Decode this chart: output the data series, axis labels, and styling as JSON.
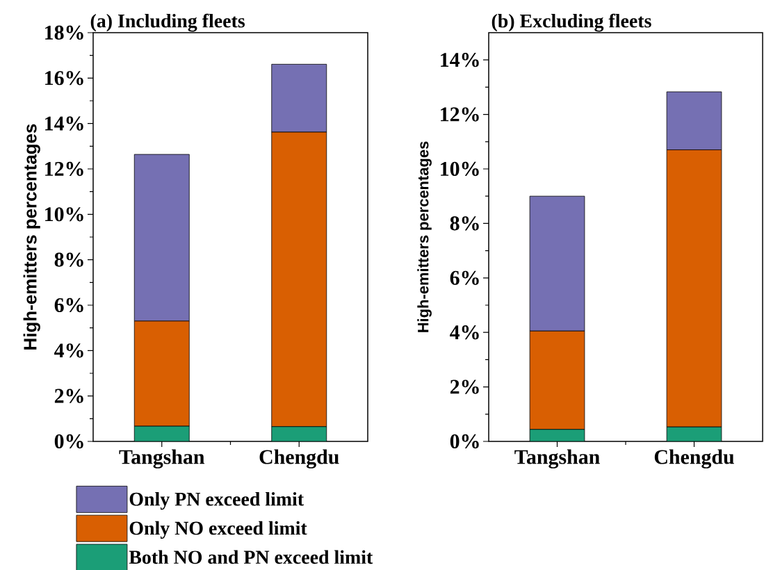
{
  "chart_data": [
    {
      "type": "bar",
      "title": "(a) Including fleets",
      "ylabel": "High-emitters percentages",
      "categories": [
        "Tangshan",
        "Chengdu"
      ],
      "stacked": true,
      "legend": "bottom",
      "series": [
        {
          "name": "Both NO and PN exceed limit",
          "color": "#1b9e77",
          "values": [
            0.67,
            0.65
          ]
        },
        {
          "name": "Only NO exceed limit",
          "color": "#d95f02",
          "values": [
            4.63,
            12.97
          ]
        },
        {
          "name": "Only PN exceed limit",
          "color": "#7570b3",
          "values": [
            7.34,
            2.99
          ]
        }
      ],
      "ylim": [
        0,
        18
      ],
      "yticks": [
        {
          "value": 0,
          "label": "0%"
        },
        {
          "value": 2,
          "label": "2%"
        },
        {
          "value": 4,
          "label": "4%"
        },
        {
          "value": 6,
          "label": "6%"
        },
        {
          "value": 8,
          "label": "8%"
        },
        {
          "value": 10,
          "label": "10%"
        },
        {
          "value": 12,
          "label": "12%"
        },
        {
          "value": 14,
          "label": "14%"
        },
        {
          "value": 16,
          "label": "16%"
        },
        {
          "value": 18,
          "label": "18%"
        }
      ]
    },
    {
      "type": "bar",
      "title": "(b) Excluding fleets",
      "ylabel": "High-emitters percentages",
      "categories": [
        "Tangshan",
        "Chengdu"
      ],
      "stacked": true,
      "series": [
        {
          "color": "#1b9e77",
          "values": [
            0.44,
            0.53
          ]
        },
        {
          "color": "#d95f02",
          "values": [
            3.61,
            10.17
          ]
        },
        {
          "color": "#7570b3",
          "values": [
            4.95,
            2.13
          ]
        }
      ],
      "ylim": [
        0,
        15
      ],
      "yticks": [
        {
          "value": 0,
          "label": "0%"
        },
        {
          "value": 2,
          "label": "2%"
        },
        {
          "value": 4,
          "label": "4%"
        },
        {
          "value": 6,
          "label": "6%"
        },
        {
          "value": 8,
          "label": "8%"
        },
        {
          "value": 10,
          "label": "10%"
        },
        {
          "value": 12,
          "label": "12%"
        },
        {
          "value": 14,
          "label": "14%"
        }
      ]
    }
  ]
}
